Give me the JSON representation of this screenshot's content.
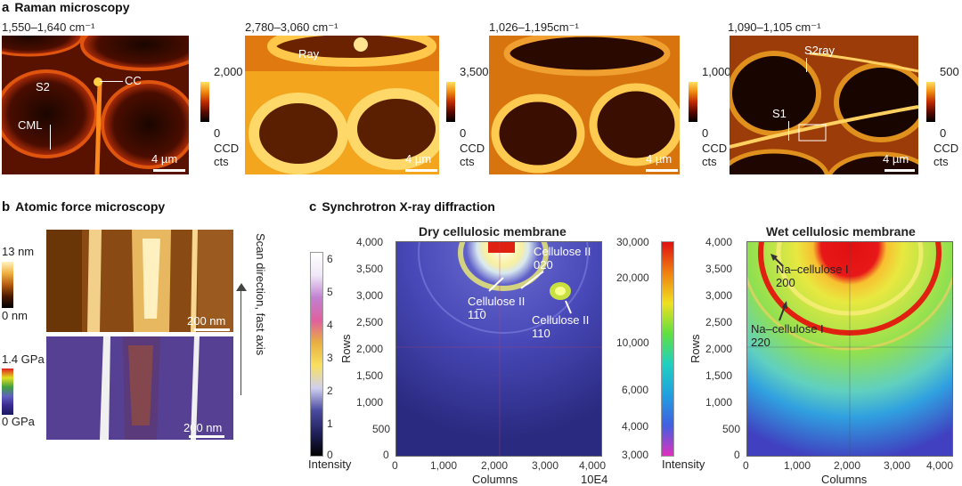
{
  "panel_a": {
    "title_letter": "a",
    "title": "Raman microscopy",
    "maps": [
      {
        "range": "1,550–1,640 cm⁻¹",
        "cb_max": "2,000",
        "cb_min": "0",
        "cb_unit": "CCD cts",
        "scalebar": "4 µm",
        "labels": [
          "S2",
          "CC",
          "CML"
        ]
      },
      {
        "range": "2,780–3,060 cm⁻¹",
        "cb_max": "3,500",
        "cb_min": "0",
        "cb_unit": "CCD cts",
        "scalebar": "4 µm",
        "labels": [
          "Ray"
        ]
      },
      {
        "range": "1,026–1,195cm⁻¹",
        "cb_max": "1,000",
        "cb_min": "0",
        "cb_unit": "CCD cts",
        "scalebar": "4 µm",
        "labels": []
      },
      {
        "range": "1,090–1,105 cm⁻¹",
        "cb_max": "500",
        "cb_min": "0",
        "cb_unit": "CCD cts",
        "scalebar": "4 µm",
        "labels": [
          "S2ray",
          "S1"
        ]
      }
    ]
  },
  "panel_b": {
    "title_letter": "b",
    "title": "Atomic force microscopy",
    "height_max": "13 nm",
    "height_min": "0 nm",
    "mod_max": "1.4 GPa",
    "mod_min": "0 GPa",
    "scalebar_top": "200 nm",
    "scalebar_bottom": "200 nm",
    "scan_label": "Scan direction, fast axis"
  },
  "panel_c": {
    "title_letter": "c",
    "title": "Synchrotron X-ray diffraction",
    "left_cb": {
      "ticks": [
        "6",
        "5",
        "4",
        "3",
        "2",
        "1",
        "0"
      ],
      "label": "Intensity"
    },
    "dry": {
      "title": "Dry cellulosic membrane",
      "ylabel": "Rows",
      "xlabel": "Columns",
      "x_ticks": [
        "0",
        "1,000",
        "2,000",
        "3,000",
        "4,000"
      ],
      "y_ticks": [
        "4,000",
        "3,500",
        "3,000",
        "2,500",
        "2,000",
        "1,500",
        "1,000",
        "500",
        "0"
      ],
      "multiplier": "10E4",
      "annotations": [
        {
          "line1": "Cellulose II",
          "line2": "020"
        },
        {
          "line1": "Cellulose II",
          "line2": "11̅0"
        },
        {
          "line1": "Cellulose II",
          "line2": "110"
        }
      ]
    },
    "mid_cb": {
      "ticks": [
        "30,000",
        "20,000",
        "10,000",
        "6,000",
        "4,000",
        "3,000"
      ],
      "label": "Intensity"
    },
    "wet": {
      "title": "Wet cellulosic membrane",
      "ylabel": "Rows",
      "xlabel": "Columns",
      "x_ticks": [
        "0",
        "1,000",
        "2,000",
        "3,000",
        "4,000"
      ],
      "y_ticks": [
        "4,000",
        "3,500",
        "3,000",
        "2,500",
        "2,000",
        "1,500",
        "1,000",
        "500",
        "0"
      ],
      "annotations": [
        {
          "line1": "Na–cellulose I",
          "line2": "200"
        },
        {
          "line1": "Na–cellulose I",
          "line2": "220"
        }
      ]
    }
  }
}
